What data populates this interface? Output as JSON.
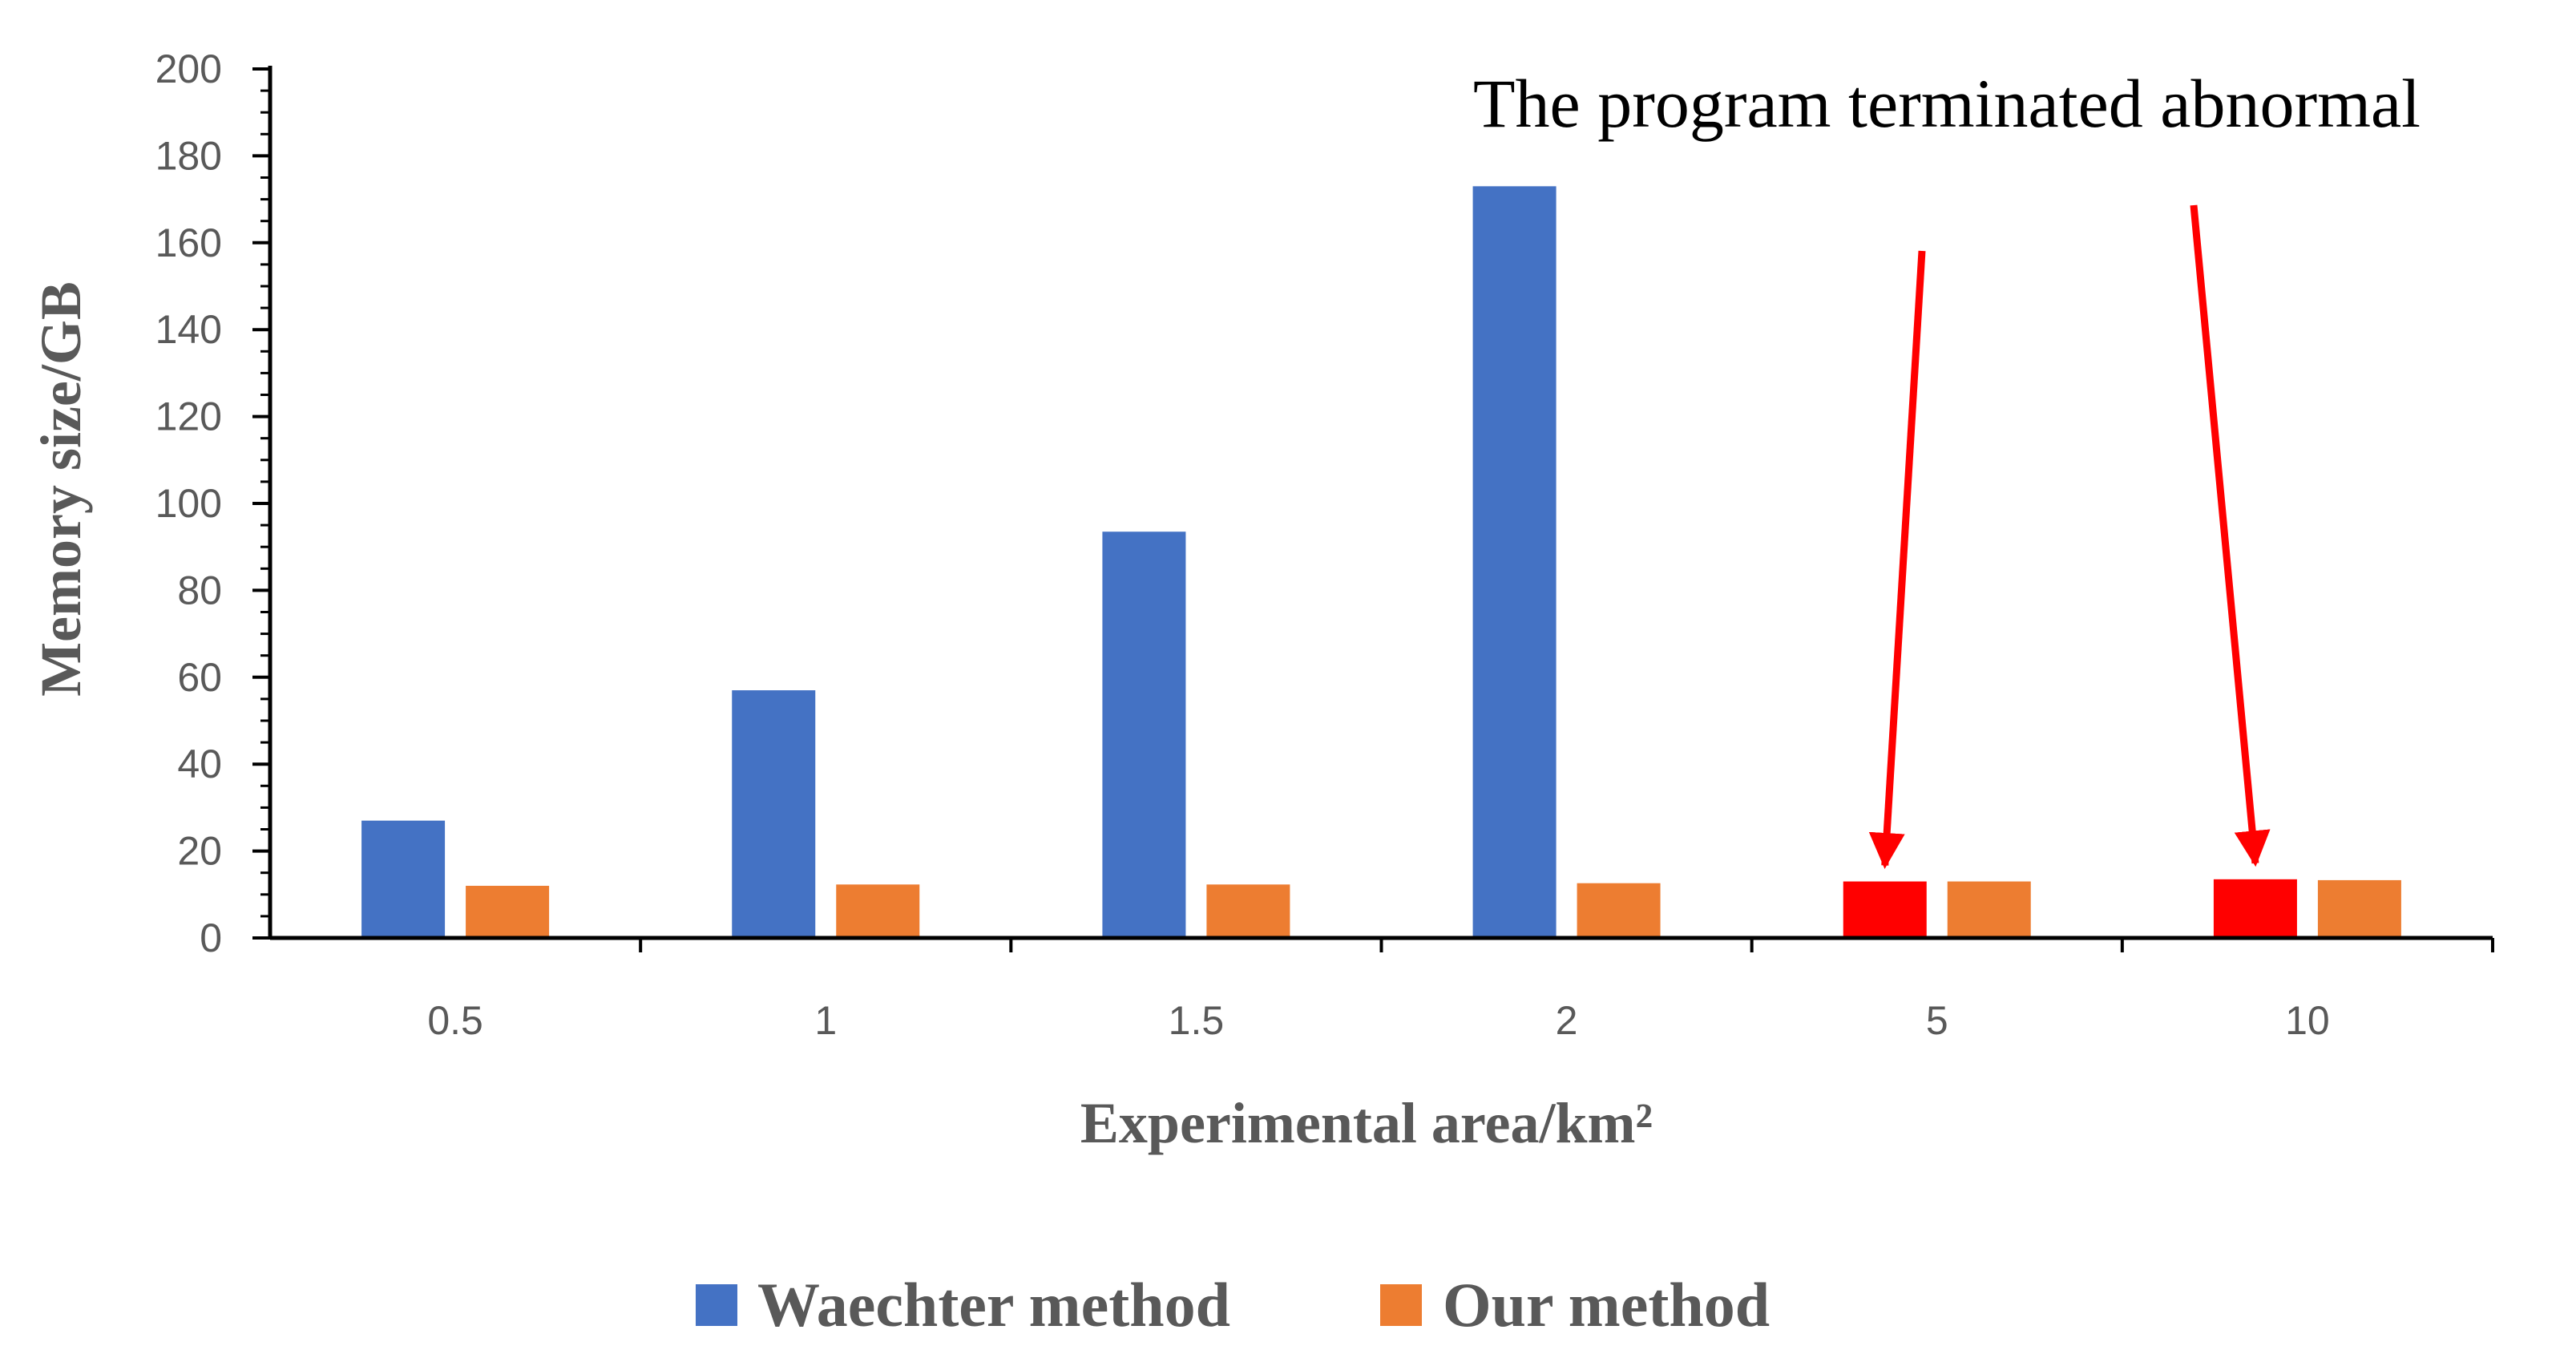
{
  "chart_data": {
    "type": "bar",
    "title": "",
    "annotation": "The program terminated abnormal",
    "xlabel": "Experimental area/km²",
    "ylabel": "Memory size/GB",
    "ylim": [
      0,
      200
    ],
    "ytick_step": 20,
    "categories": [
      "0.5",
      "1",
      "1.5",
      "2",
      "5",
      "10"
    ],
    "series": [
      {
        "name": "Waechter method",
        "color": "#4472C4",
        "values": [
          27,
          57,
          93.5,
          173,
          13,
          13.5
        ],
        "value_colors": [
          "#4472C4",
          "#4472C4",
          "#4472C4",
          "#4472C4",
          "#FF0000",
          "#FF0000"
        ]
      },
      {
        "name": "Our method",
        "color": "#ED7D31",
        "values": [
          12,
          12.3,
          12.3,
          12.6,
          13,
          13.3
        ]
      }
    ],
    "arrow_color": "#FF0000",
    "legend_position": "bottom-center",
    "grid": false
  }
}
